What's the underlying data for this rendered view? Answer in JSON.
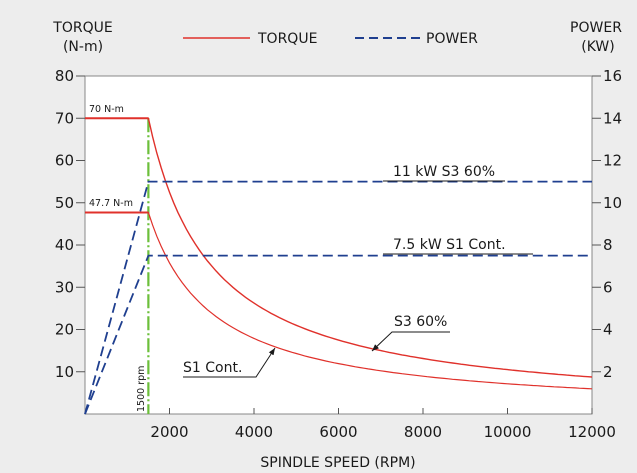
{
  "chart_data": {
    "type": "line",
    "title": "",
    "xlabel": "SPINDLE SPEED (RPM)",
    "ylabel_left": [
      "TORQUE",
      "(N-m)"
    ],
    "ylabel_right": [
      "POWER",
      "(KW)"
    ],
    "xlim": [
      0,
      12000
    ],
    "ylim_left": [
      0,
      80
    ],
    "ylim_right": [
      0,
      16
    ],
    "x_ticks": [
      2000,
      4000,
      6000,
      8000,
      10000,
      12000
    ],
    "y_left_ticks": [
      10,
      20,
      30,
      40,
      50,
      60,
      70,
      80
    ],
    "y_right_ticks": [
      2,
      4,
      6,
      8,
      10,
      12,
      14,
      16
    ],
    "grid": false,
    "legend_position": "top-center",
    "legend": [
      {
        "label": "TORQUE",
        "color": "#e0312b",
        "style": "solid"
      },
      {
        "label": "POWER",
        "color": "#1f3f8f",
        "style": "dashed"
      }
    ],
    "series": [
      {
        "name": "TORQUE",
        "axis": "left",
        "color": "#e0312b",
        "x": [
          0,
          1500,
          2000,
          3000,
          4000,
          5000,
          6000,
          7000,
          8000,
          9000,
          10000,
          11000,
          12000
        ],
        "y": [
          70,
          70,
          52.5,
          35.0,
          26.3,
          21.0,
          17.5,
          15.0,
          13.1,
          11.7,
          10.5,
          9.5,
          8.8
        ]
      },
      {
        "name": "TORQUE",
        "axis": "left",
        "color": "#e0312b",
        "x": [
          0,
          1500,
          2000,
          3000,
          4000,
          5000,
          6000,
          7000,
          8000,
          9000,
          10000,
          11000,
          12000
        ],
        "y": [
          47.7,
          47.7,
          35.8,
          23.9,
          17.9,
          14.3,
          11.9,
          10.2,
          8.9,
          8.0,
          7.2,
          6.5,
          6.0
        ]
      },
      {
        "name": "POWER",
        "axis": "right",
        "color": "#1f3f8f",
        "x": [
          0,
          1500,
          12000
        ],
        "y": [
          0,
          11,
          11
        ]
      },
      {
        "name": "POWER",
        "axis": "right",
        "color": "#1f3f8f",
        "x": [
          0,
          1500,
          12000
        ],
        "y": [
          0,
          7.5,
          7.5
        ]
      }
    ],
    "vertical_marker": {
      "x": 1500,
      "label": "1500 rpm",
      "color": "#6cbf3a"
    },
    "annotations": {
      "torque_high": "70 N-m",
      "torque_low": "47.7 N-m",
      "power_high": "11 kW S3 60%",
      "power_low": "7.5 kW S1 Cont.",
      "curve_s3": "S3 60%",
      "curve_s1": "S1 Cont."
    }
  }
}
